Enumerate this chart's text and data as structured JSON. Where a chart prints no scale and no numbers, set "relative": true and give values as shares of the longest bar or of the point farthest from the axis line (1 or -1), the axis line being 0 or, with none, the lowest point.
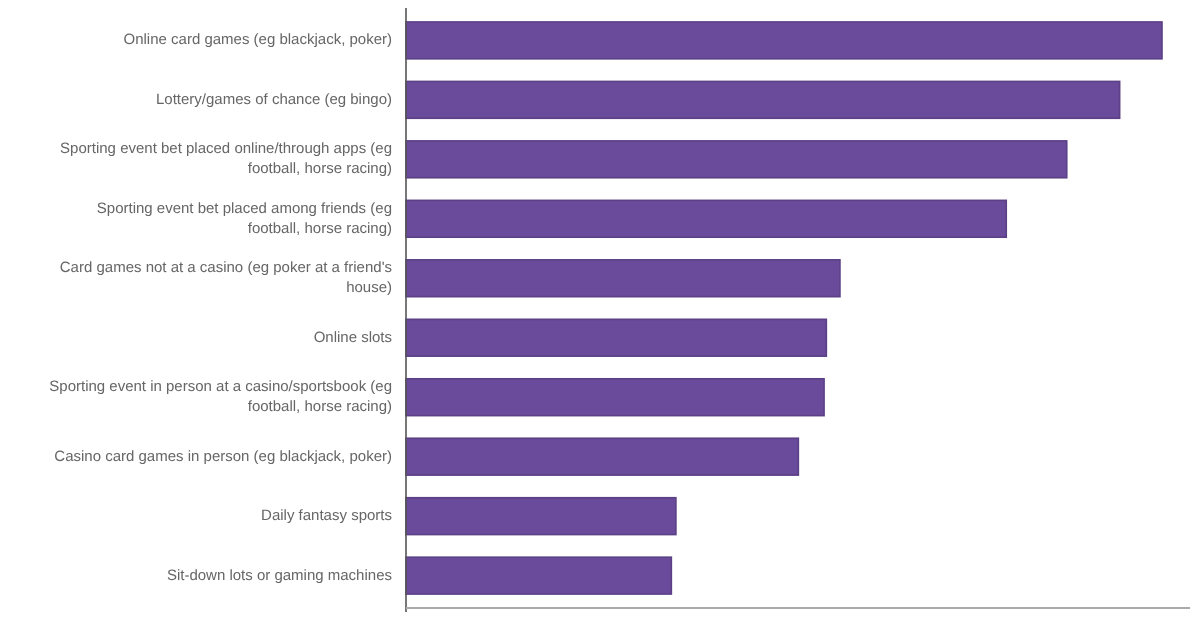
{
  "chart_data": {
    "type": "bar",
    "orientation": "horizontal",
    "relative": true,
    "color": "#694a9b",
    "categories": [
      "Online card games (eg blackjack, poker)",
      "Lottery/games of chance (eg bingo)",
      "Sporting event bet placed online/through apps (eg football, horse racing)",
      "Sporting event bet placed among friends (eg football, horse racing)",
      "Card games not at a casino (eg poker at a friend's house)",
      "Online slots",
      "Sporting event in person at a casino/sportsbook (eg football, horse racing)",
      "Casino card games in person (eg blackjack, poker)",
      "Daily fantasy sports",
      "Sit-down lots or gaming machines"
    ],
    "values": [
      1,
      0.944,
      0.874,
      0.794,
      0.574,
      0.556,
      0.553,
      0.519,
      0.357,
      0.351
    ]
  }
}
